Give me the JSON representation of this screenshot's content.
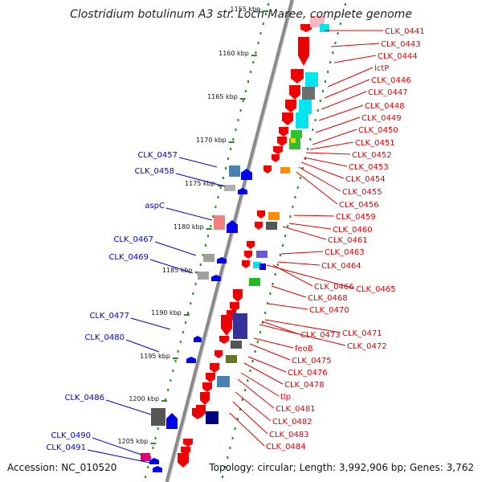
{
  "title": "Clostridium botulinum A3 str. Loch Maree, complete genome",
  "footer": {
    "accession": "Accession: NC_010520",
    "topology": "Topology: circular; Length: 3,992,906 bp; Genes: 3,762"
  },
  "colors": {
    "forward_label": "#0000cc",
    "reverse_label": "#dd0000",
    "backbone": "#8a8a8a",
    "ring_dots": "#2a8a2a",
    "forward_feature": "#0000ee",
    "reverse_feature": "#ee0000",
    "cyan": "#00e5ee",
    "pink": "#ffb6c1"
  },
  "scale": {
    "unit": "kbp",
    "ticks": [
      "1155 kbp",
      "1160 kbp",
      "1165 kbp",
      "1170 kbp",
      "1175 kbp",
      "1180 kbp",
      "1185 kbp",
      "1190 kbp",
      "1195 kbp",
      "1200 kbp",
      "1205 kbp"
    ]
  },
  "forward_genes": [
    "CLK_0457",
    "CLK_0458",
    "aspC",
    "CLK_0467",
    "CLK_0469",
    "CLK_0477",
    "CLK_0480",
    "CLK_0486",
    "CLK_0490",
    "CLK_0491"
  ],
  "reverse_genes": [
    "CLK_0441",
    "CLK_0443",
    "CLK_0444",
    "lctP",
    "CLK_0446",
    "CLK_0447",
    "CLK_0448",
    "CLK_0449",
    "CLK_0450",
    "CLK_0451",
    "CLK_0452",
    "CLK_0453",
    "CLK_0454",
    "CLK_0455",
    "CLK_0456",
    "CLK_0459",
    "CLK_0460",
    "CLK_0461",
    "CLK_0463",
    "CLK_0464",
    "CLK_0466",
    "CLK_0465",
    "CLK_0468",
    "CLK_0470",
    "CLK_0471",
    "CLK_0473",
    "CLK_0472",
    "feoB",
    "CLK_0475",
    "CLK_0476",
    "CLK_0478",
    "tlp",
    "CLK_0481",
    "CLK_0482",
    "CLK_0483",
    "CLK_0484"
  ]
}
